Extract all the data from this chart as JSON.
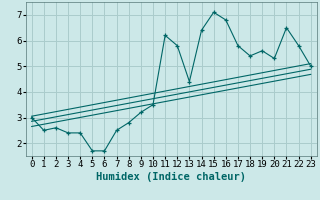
{
  "title": "",
  "xlabel": "Humidex (Indice chaleur)",
  "ylabel": "",
  "background_color": "#cce8e8",
  "grid_color": "#aacccc",
  "line_color": "#006666",
  "xlim": [
    -0.5,
    23.5
  ],
  "ylim": [
    1.5,
    7.5
  ],
  "yticks": [
    2,
    3,
    4,
    5,
    6,
    7
  ],
  "xticks": [
    0,
    1,
    2,
    3,
    4,
    5,
    6,
    7,
    8,
    9,
    10,
    11,
    12,
    13,
    14,
    15,
    16,
    17,
    18,
    19,
    20,
    21,
    22,
    23
  ],
  "data_x": [
    0,
    1,
    2,
    3,
    4,
    5,
    6,
    7,
    8,
    9,
    10,
    11,
    12,
    13,
    14,
    15,
    16,
    17,
    18,
    19,
    20,
    21,
    22,
    23
  ],
  "data_y": [
    3.0,
    2.5,
    2.6,
    2.4,
    2.4,
    1.7,
    1.7,
    2.5,
    2.8,
    3.2,
    3.5,
    6.2,
    5.8,
    4.4,
    6.4,
    7.1,
    6.8,
    5.8,
    5.4,
    5.6,
    5.3,
    6.5,
    5.8,
    5.0
  ],
  "reg_lines": [
    [
      [
        0,
        3.05
      ],
      [
        23,
        5.1
      ]
    ],
    [
      [
        0,
        2.85
      ],
      [
        23,
        4.88
      ]
    ],
    [
      [
        0,
        2.65
      ],
      [
        23,
        4.68
      ]
    ]
  ],
  "tick_fontsize": 6.5,
  "label_fontsize": 7.5
}
